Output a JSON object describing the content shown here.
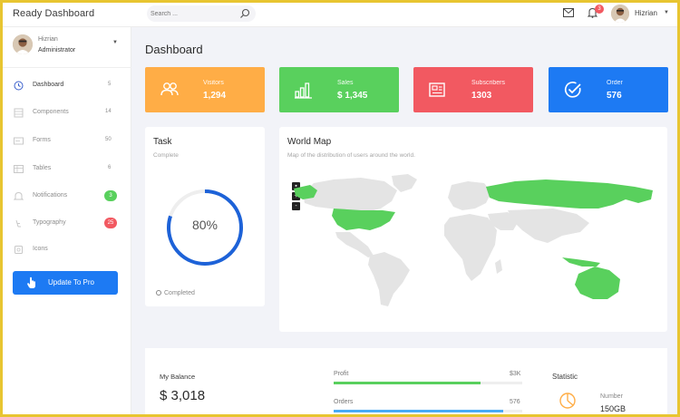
{
  "header": {
    "brand": "Ready Dashboard",
    "search_placeholder": "Search ...",
    "notification_count": "3",
    "user": "Hizrian"
  },
  "sidebar": {
    "user_name": "Hizrian",
    "user_role": "Administrator",
    "items": [
      {
        "label": "Dashboard",
        "count": "5",
        "icon": "clock-icon"
      },
      {
        "label": "Components",
        "count": "14",
        "icon": "grid-icon"
      },
      {
        "label": "Forms",
        "count": "50",
        "icon": "form-icon"
      },
      {
        "label": "Tables",
        "count": "6",
        "icon": "table-icon"
      },
      {
        "label": "Notifications",
        "badge": "3",
        "badge_color": "#59d05d",
        "icon": "bell-icon"
      },
      {
        "label": "Typography",
        "badge": "25",
        "badge_color": "#f25961",
        "icon": "typography-icon"
      },
      {
        "label": "Icons",
        "icon": "icons-icon"
      }
    ],
    "pro_button": "Update To Pro"
  },
  "main": {
    "title": "Dashboard",
    "stats": [
      {
        "label": "Visitors",
        "value": "1,294",
        "color": "#ffad46",
        "icon": "users-icon"
      },
      {
        "label": "Sales",
        "value": "$ 1,345",
        "color": "#59d05d",
        "icon": "bar-chart-icon"
      },
      {
        "label": "Subscribers",
        "value": "1303",
        "color": "#f25961",
        "icon": "newspaper-icon"
      },
      {
        "label": "Order",
        "value": "576",
        "color": "#1d7af3",
        "icon": "check-circle-icon"
      }
    ],
    "task": {
      "title": "Task",
      "subtitle": "Complete",
      "percent_text": "80%",
      "percent": 0.8,
      "legend": "Completed",
      "color": "#1d62d8"
    },
    "world_map": {
      "title": "World Map",
      "subtitle": "Map of the distribution of users around the world.",
      "highlight_color": "#59d05d",
      "base_color": "#e4e4e4",
      "highlighted_regions": [
        "United States",
        "Russia",
        "Australia",
        "Indonesia",
        "Canada"
      ],
      "zoom_controls": [
        "+",
        "-"
      ]
    },
    "balance": {
      "label": "My Balance",
      "value": "$ 3,018"
    },
    "progress": [
      {
        "label": "Profit",
        "value": "$3K",
        "fill": 0.78,
        "color": "#59d05d"
      },
      {
        "label": "Orders",
        "value": "576",
        "fill": 0.9,
        "color": "#48abf7"
      }
    ],
    "statistic": {
      "title": "Statistic",
      "label": "Number",
      "value": "150GB",
      "color": "#ffad46"
    }
  }
}
